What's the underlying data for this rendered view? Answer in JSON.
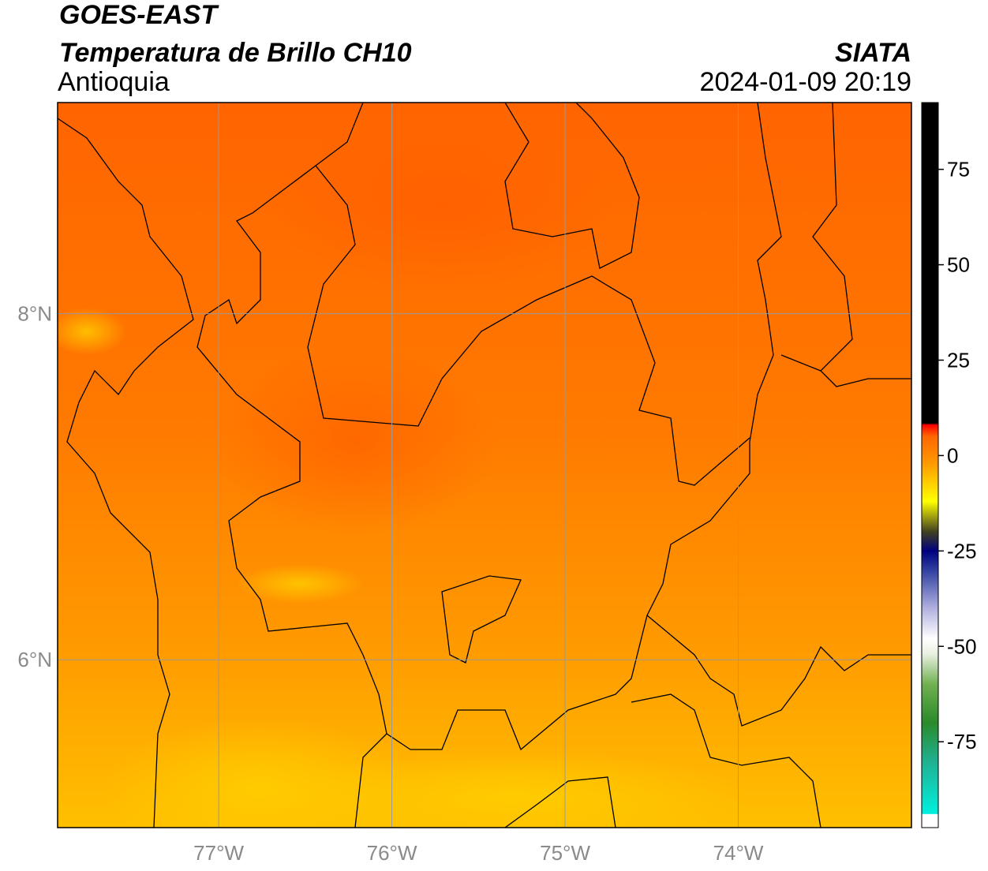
{
  "header": {
    "line1": "GOES-EAST",
    "line2": "Temperatura de Brillo CH10",
    "line3": "Antioquia",
    "source": "SIATA",
    "datetime": "2024-01-09 20:19"
  },
  "map": {
    "xlim": [
      -77.93,
      -73.0
    ],
    "ylim": [
      5.03,
      9.22
    ],
    "xticks": [
      {
        "value": -77,
        "label": "77°W"
      },
      {
        "value": -76,
        "label": "76°W"
      },
      {
        "value": -75,
        "label": "75°W"
      },
      {
        "value": -74,
        "label": "74°W"
      }
    ],
    "yticks": [
      {
        "value": 6,
        "label": "6°N"
      },
      {
        "value": 8,
        "label": "8°N"
      }
    ],
    "grid": true
  },
  "colorbar": {
    "lim": [
      -97.5,
      92.5
    ],
    "ticks": [
      -75,
      -50,
      -25,
      0,
      25,
      50,
      75
    ],
    "stops": [
      {
        "value": -97.5,
        "color": "#ffffff"
      },
      {
        "value": -94,
        "color": "#ffffff"
      },
      {
        "value": -93.9,
        "color": "#00f0e0"
      },
      {
        "value": -80,
        "color": "#20b090"
      },
      {
        "value": -70,
        "color": "#2a8a2a"
      },
      {
        "value": -60,
        "color": "#70b050"
      },
      {
        "value": -52,
        "color": "#e8f0e0"
      },
      {
        "value": -48,
        "color": "#ffffff"
      },
      {
        "value": -40,
        "color": "#b0b0e0"
      },
      {
        "value": -30,
        "color": "#3040a0"
      },
      {
        "value": -25,
        "color": "#000080"
      },
      {
        "value": -20,
        "color": "#404020"
      },
      {
        "value": -12,
        "color": "#ffff00"
      },
      {
        "value": -2,
        "color": "#ff9900"
      },
      {
        "value": 5,
        "color": "#ff6600"
      },
      {
        "value": 8,
        "color": "#ff0000"
      },
      {
        "value": 8.5,
        "color": "#000000"
      },
      {
        "value": 92.5,
        "color": "#000000"
      }
    ]
  }
}
